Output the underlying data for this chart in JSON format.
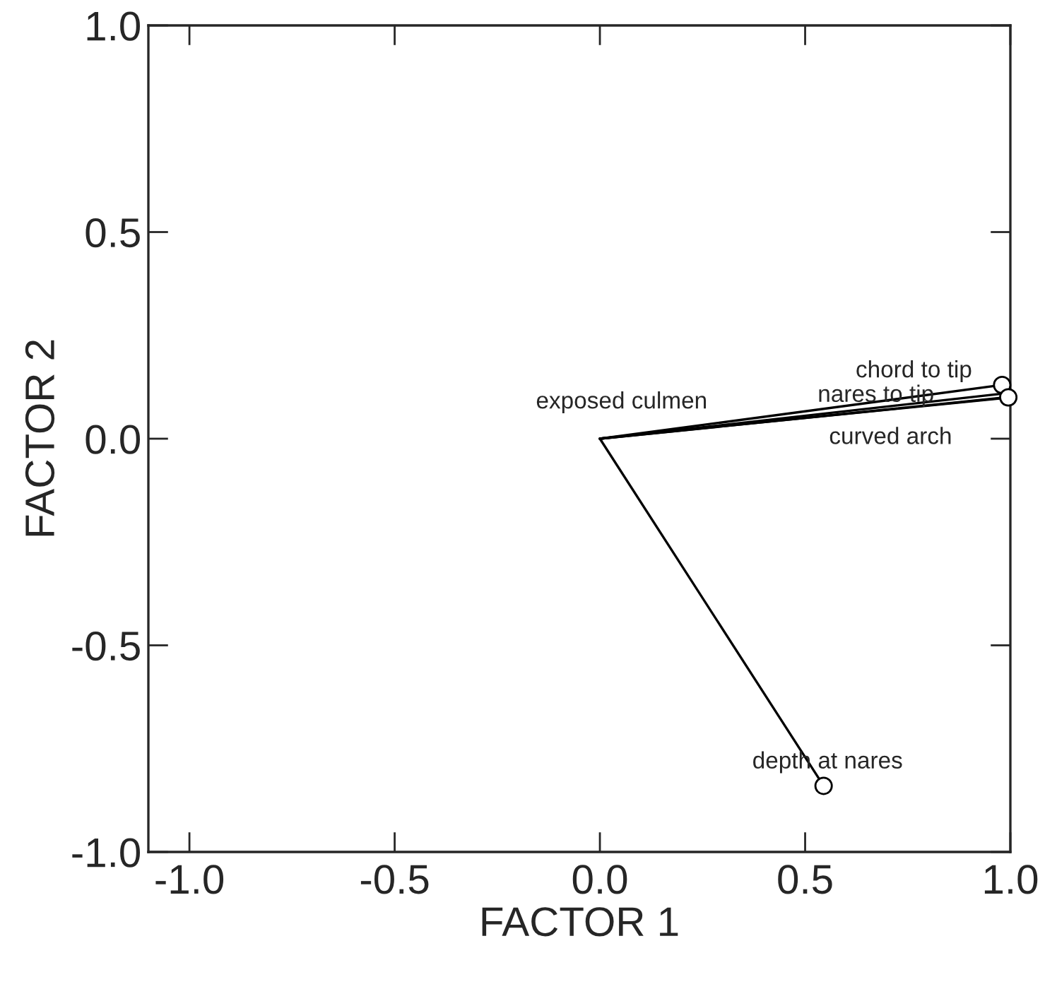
{
  "chart_data": {
    "type": "line",
    "xlabel": "FACTOR 1",
    "ylabel": "FACTOR 2",
    "xlim": [
      -1.1,
      1.0
    ],
    "ylim": [
      -1.0,
      1.0
    ],
    "xticks": [
      {
        "value": -1.0,
        "label": "-1.0"
      },
      -0.5,
      {
        "value": 0.0,
        "label": "0.0"
      },
      0.5,
      {
        "value": 1.0,
        "label": "1.0"
      }
    ],
    "yticks": [
      {
        "value": -1.0,
        "label": "-1.0"
      },
      -0.5,
      {
        "value": 0.0,
        "label": "0.0"
      },
      0.5,
      {
        "value": 1.0,
        "label": "1.0"
      }
    ],
    "series": [
      {
        "color": "#000000",
        "x": [
          0,
          0.99
        ],
        "values": [
          0,
          0.11
        ]
      },
      {
        "color": "#000000",
        "x": [
          0,
          0.98
        ],
        "values": [
          0,
          0.13
        ]
      },
      {
        "color": "#000000",
        "x": [
          0,
          0.99
        ],
        "values": [
          0,
          0.1
        ]
      },
      {
        "color": "#000000",
        "x": [
          0,
          1.0
        ],
        "values": [
          0,
          0.1
        ]
      },
      {
        "color": "#000000",
        "x": [
          0,
          0.545
        ],
        "values": [
          0,
          -0.84
        ]
      },
      {
        "type": "scatter",
        "color": "#000000",
        "x": [
          0.98,
          0.995,
          0.545
        ],
        "values": [
          0.13,
          0.1,
          -0.84
        ],
        "marker": "circle"
      }
    ],
    "annotations": [
      "exposed culmen",
      {
        "text": "chord to tip",
        "x": 0.98,
        "y": 0.13
      },
      "nares to tip",
      "curved arch",
      {
        "text": "depth at nares",
        "x": 0.545,
        "y": -0.84
      }
    ]
  }
}
